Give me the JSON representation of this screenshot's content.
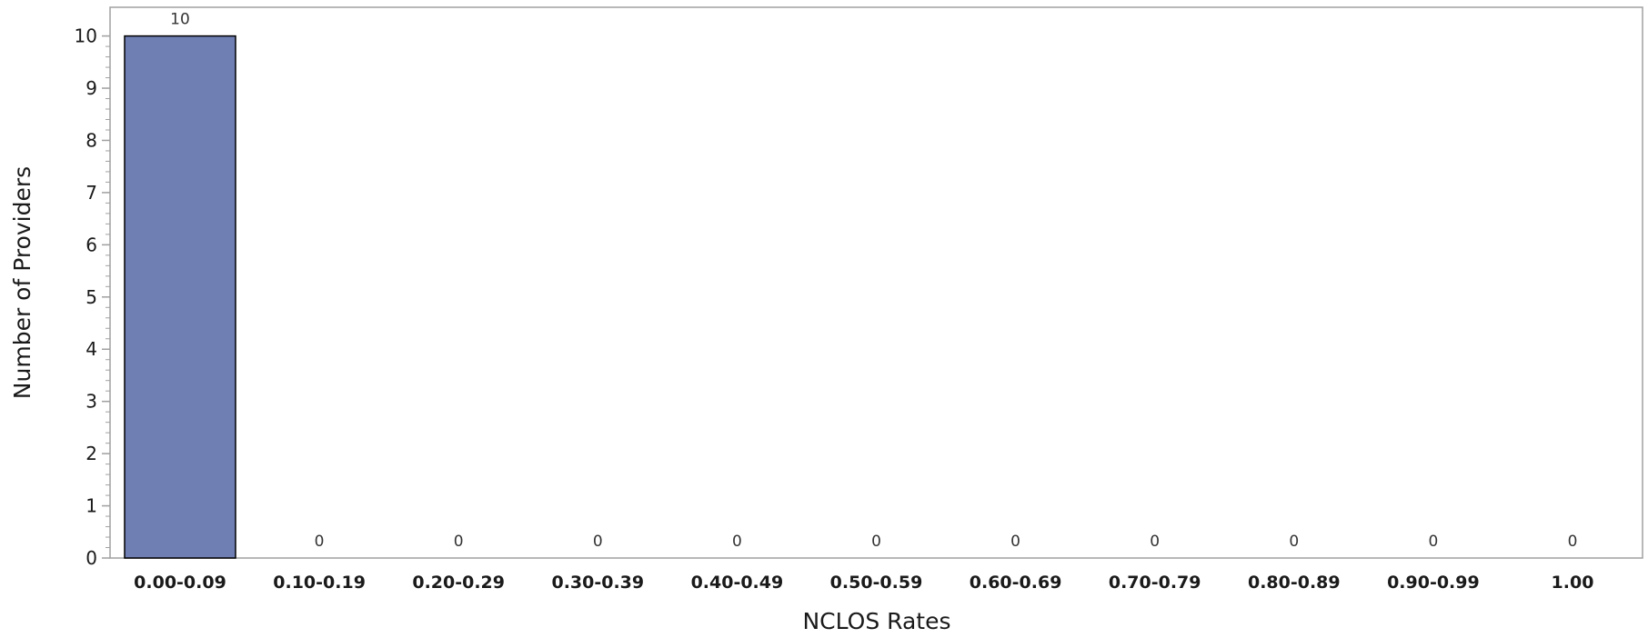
{
  "chart_data": {
    "type": "bar",
    "title": "",
    "xlabel": "NCLOS Rates",
    "ylabel": "Number of Providers",
    "categories": [
      "0.00-0.09",
      "0.10-0.19",
      "0.20-0.29",
      "0.30-0.39",
      "0.40-0.49",
      "0.50-0.59",
      "0.60-0.69",
      "0.70-0.79",
      "0.80-0.89",
      "0.90-0.99",
      "1.00"
    ],
    "values": [
      10,
      0,
      0,
      0,
      0,
      0,
      0,
      0,
      0,
      0,
      0
    ],
    "data_labels": [
      "10",
      "0",
      "0",
      "0",
      "0",
      "0",
      "0",
      "0",
      "0",
      "0",
      "0"
    ],
    "ylim": [
      0,
      10.55
    ],
    "yticks": [
      0,
      1,
      2,
      3,
      4,
      5,
      6,
      7,
      8,
      9,
      10
    ],
    "y_minor_step": 0.2,
    "grid": false,
    "legend": "none",
    "colors": {
      "bar_fill": "#6f7eb3",
      "bar_edge": "#000000",
      "frame": "#a0a0a0"
    }
  }
}
